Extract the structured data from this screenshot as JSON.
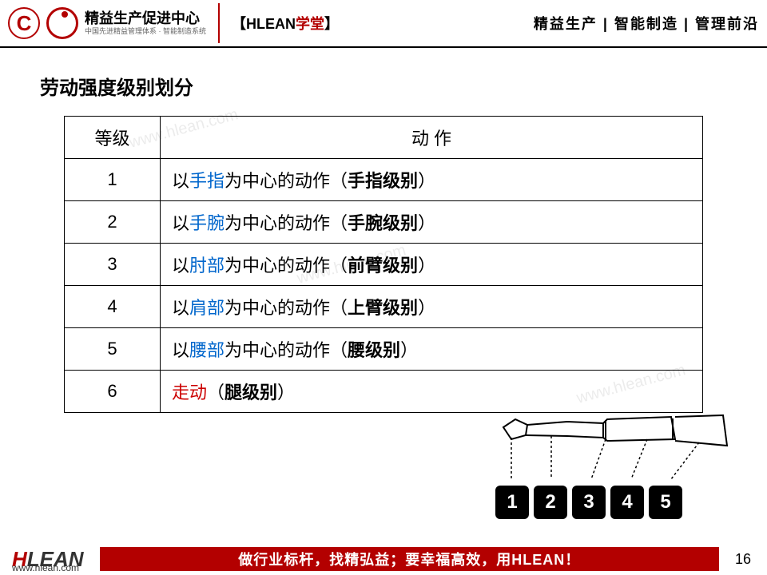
{
  "header": {
    "logo_title": "精益生产促进中心",
    "logo_sub": "中国先进精益管理体系 · 智能制造系统",
    "hlean_bracket_l": "【",
    "hlean_text": "HLEAN",
    "hlean_xuetang": "学堂",
    "hlean_bracket_r": "】",
    "right_text": "精益生产 | 智能制造 | 管理前沿"
  },
  "title": "劳动强度级别划分",
  "watermark": "www.hlean.com",
  "table": {
    "columns": [
      "等级",
      "动 作"
    ],
    "rows": [
      {
        "level": "1",
        "prefix": "以",
        "part": "手指",
        "mid": "为中心的动作（",
        "bold": "手指级别",
        "suffix": "）",
        "part_color": "blue"
      },
      {
        "level": "2",
        "prefix": "以",
        "part": "手腕",
        "mid": "为中心的动作（",
        "bold": "手腕级别",
        "suffix": "）",
        "part_color": "blue"
      },
      {
        "level": "3",
        "prefix": "以",
        "part": "肘部",
        "mid": "为中心的动作（",
        "bold": "前臂级别",
        "suffix": "）",
        "part_color": "blue"
      },
      {
        "level": "4",
        "prefix": "以",
        "part": "肩部",
        "mid": "为中心的动作（",
        "bold": "上臂级别",
        "suffix": "）",
        "part_color": "blue"
      },
      {
        "level": "5",
        "prefix": "以",
        "part": "腰部",
        "mid": "为中心的动作（",
        "bold": "腰级别",
        "suffix": "）",
        "part_color": "blue"
      },
      {
        "level": "6",
        "prefix": "",
        "part": "走动",
        "mid": "（",
        "bold": "腿级别",
        "suffix": "）",
        "part_color": "red"
      }
    ]
  },
  "diagram": {
    "numbers": [
      "1",
      "2",
      "3",
      "4",
      "5"
    ]
  },
  "footer": {
    "logo_h": "H",
    "logo_lean": "LEAN",
    "url": "www.hlean.com",
    "slogan": "做行业标杆，找精弘益；要幸福高效，用HLEAN！",
    "page": "16"
  },
  "colors": {
    "brand_red": "#b30000",
    "link_blue": "#0066cc",
    "text_red": "#cc0000",
    "black": "#000000",
    "white": "#ffffff"
  }
}
